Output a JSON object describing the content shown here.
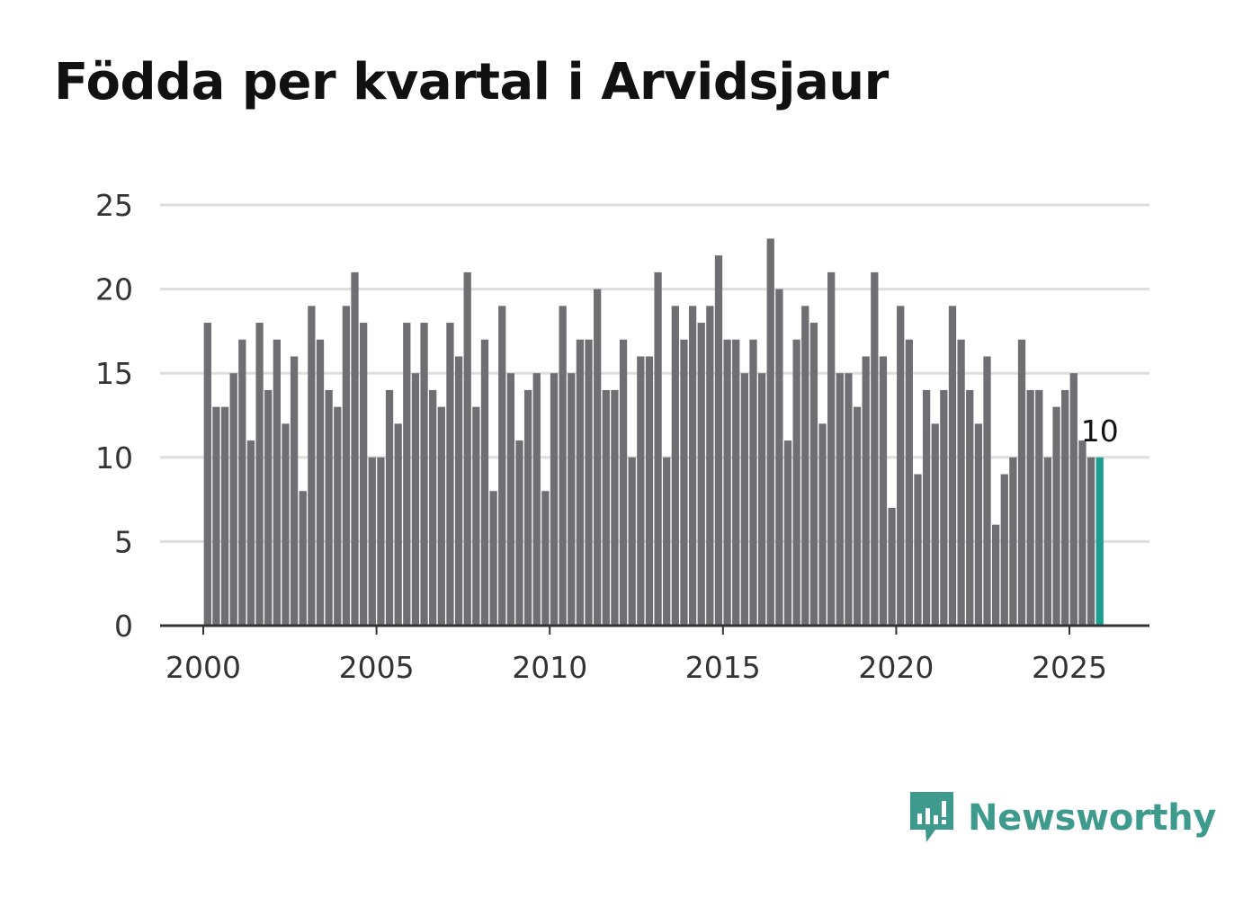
{
  "colors": {
    "bar": "#6f6f73",
    "highlight": "#1a9e8f",
    "grid": "#dedede",
    "axis": "#333333",
    "brand": "#3e9a8d"
  },
  "brand": {
    "name": "Newsworthy",
    "icon": "newsworthy-logo-icon"
  },
  "chart_data": {
    "type": "bar",
    "title": "Födda per kvartal i Arvidsjaur",
    "xlabel": "",
    "ylabel": "",
    "ylim": [
      0,
      25
    ],
    "yticks": [
      0,
      5,
      10,
      15,
      20,
      25
    ],
    "xticks": [
      2000,
      2005,
      2010,
      2015,
      2020,
      2025
    ],
    "xlim": [
      1998.75,
      2027.3
    ],
    "start": 2000,
    "step": 0.25,
    "values": [
      18,
      13,
      13,
      15,
      17,
      11,
      18,
      14,
      17,
      12,
      16,
      8,
      19,
      17,
      14,
      13,
      19,
      21,
      18,
      10,
      10,
      14,
      12,
      18,
      15,
      18,
      14,
      13,
      18,
      16,
      21,
      13,
      17,
      8,
      19,
      15,
      11,
      14,
      15,
      8,
      15,
      19,
      15,
      17,
      17,
      20,
      14,
      14,
      17,
      10,
      16,
      16,
      21,
      10,
      19,
      17,
      19,
      18,
      19,
      22,
      17,
      17,
      15,
      17,
      15,
      23,
      20,
      11,
      17,
      19,
      18,
      12,
      21,
      15,
      15,
      13,
      16,
      21,
      16,
      7,
      19,
      17,
      9,
      14,
      12,
      14,
      19,
      17,
      14,
      12,
      16,
      6,
      9,
      10,
      17,
      14,
      14,
      10,
      13,
      14,
      15,
      11,
      10,
      10
    ],
    "highlight_index": 103,
    "annotations": [
      {
        "index": 103,
        "text": "10"
      }
    ],
    "legend": "none"
  }
}
